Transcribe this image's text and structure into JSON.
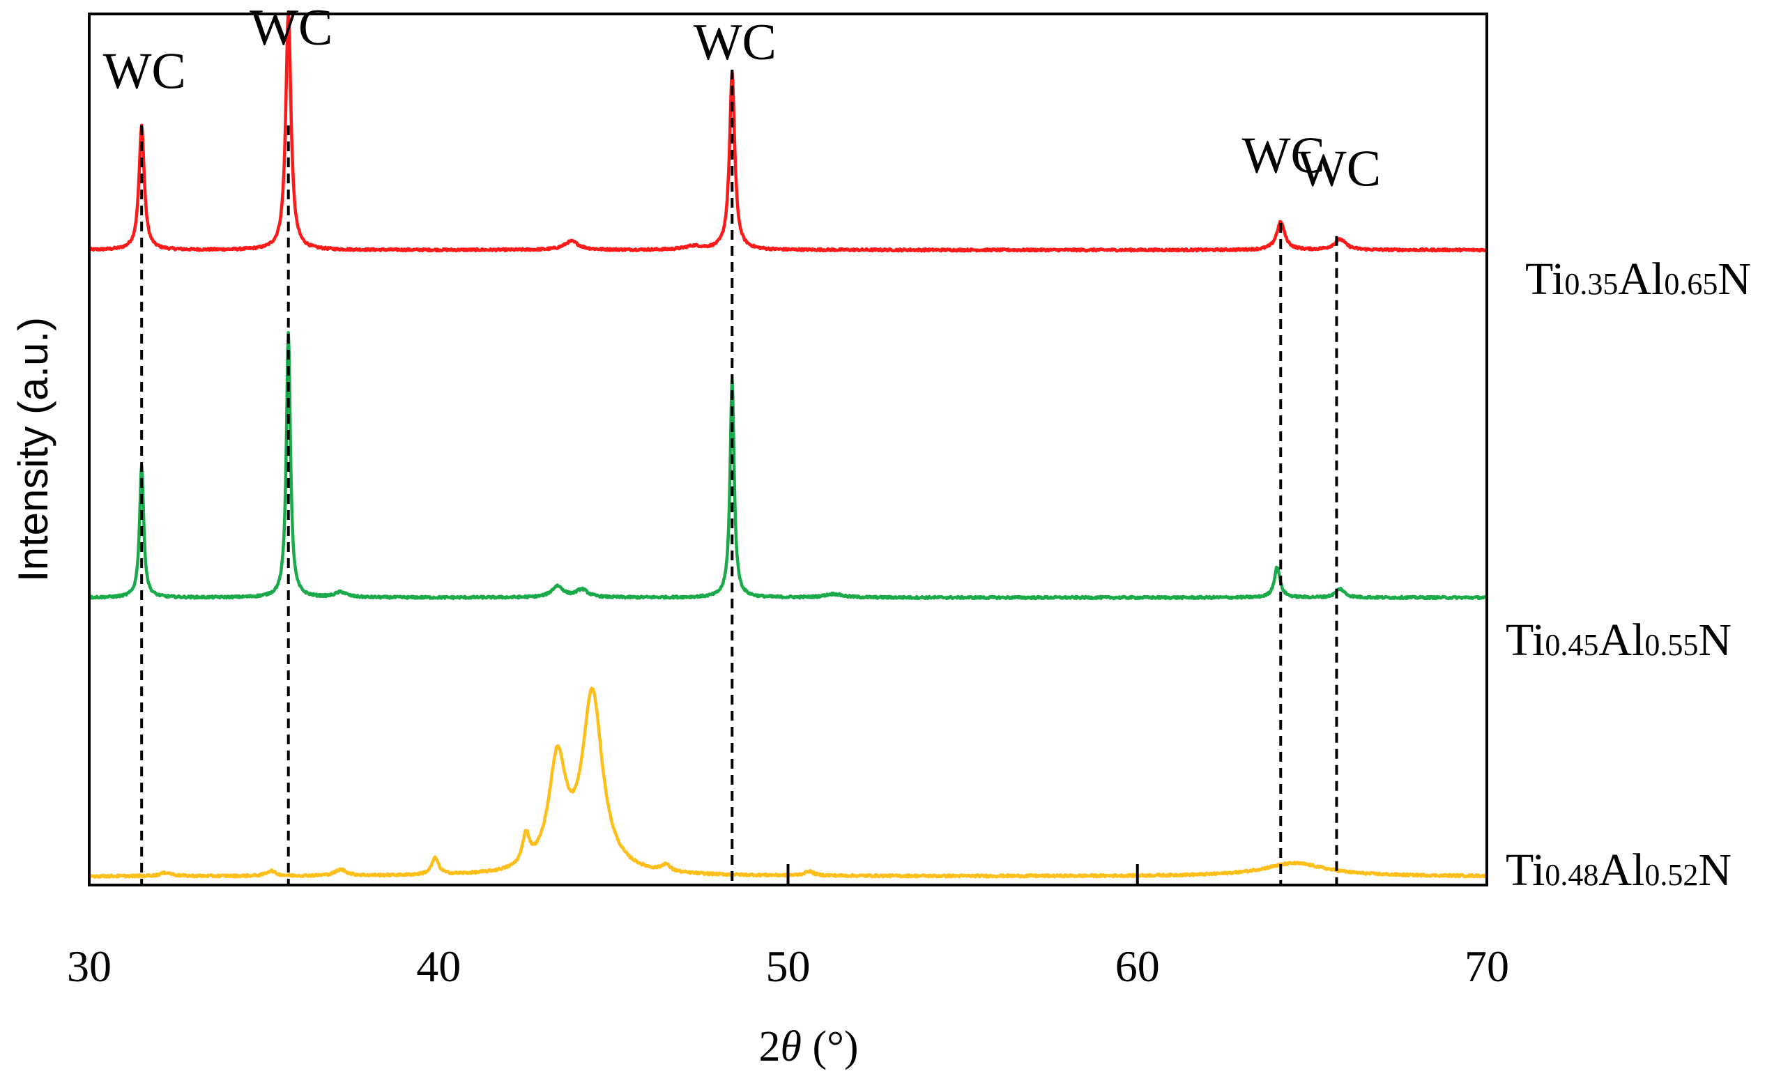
{
  "chart_data": {
    "type": "line",
    "title": "",
    "xlabel_prefix": "2",
    "xlabel_symbol": "θ",
    "xlabel_suffix": " (°)",
    "ylabel": "Intensity (a.u.)",
    "xlim": [
      30,
      70
    ],
    "ylim": [
      0,
      100
    ],
    "x_ticks": [
      30,
      40,
      50,
      60,
      70
    ],
    "x_tick_labels": [
      "30",
      "40",
      "50",
      "60",
      "70"
    ],
    "series": [
      {
        "name": "Ti0.35Al0.65N",
        "label_parts": [
          {
            "text": "Ti",
            "size": "big"
          },
          {
            "text": "0.35",
            "size": "small"
          },
          {
            "text": "Al",
            "size": "big"
          },
          {
            "text": "0.65",
            "size": "small"
          },
          {
            "text": "N",
            "size": "big"
          }
        ],
        "color": "#ff1a1a",
        "baseline": 72.9,
        "peaks": [
          {
            "x": 31.5,
            "h": 14.3,
            "w": 0.09
          },
          {
            "x": 35.7,
            "h": 27.4,
            "w": 0.09
          },
          {
            "x": 43.8,
            "h": 1.0,
            "w": 0.25
          },
          {
            "x": 47.3,
            "h": 0.4,
            "w": 0.3
          },
          {
            "x": 48.4,
            "h": 20.3,
            "w": 0.09
          },
          {
            "x": 64.1,
            "h": 3.2,
            "w": 0.14
          },
          {
            "x": 65.8,
            "h": 1.2,
            "w": 0.2
          }
        ]
      },
      {
        "name": "Ti0.45Al0.55N",
        "label_parts": [
          {
            "text": "Ti",
            "size": "big"
          },
          {
            "text": "0.45",
            "size": "small"
          },
          {
            "text": "Al",
            "size": "big"
          },
          {
            "text": "0.55",
            "size": "small"
          },
          {
            "text": "N",
            "size": "big"
          }
        ],
        "color": "#1aaa4a",
        "baseline": 33.0,
        "peaks": [
          {
            "x": 31.5,
            "h": 15.2,
            "w": 0.07
          },
          {
            "x": 35.7,
            "h": 30.5,
            "w": 0.07
          },
          {
            "x": 37.2,
            "h": 0.6,
            "w": 0.2
          },
          {
            "x": 43.4,
            "h": 1.3,
            "w": 0.2
          },
          {
            "x": 44.1,
            "h": 0.9,
            "w": 0.2
          },
          {
            "x": 48.4,
            "h": 25.0,
            "w": 0.07
          },
          {
            "x": 51.3,
            "h": 0.4,
            "w": 0.3
          },
          {
            "x": 64.0,
            "h": 3.5,
            "w": 0.1
          },
          {
            "x": 65.8,
            "h": 1.0,
            "w": 0.15
          }
        ]
      },
      {
        "name": "Ti0.48Al0.52N",
        "label_parts": [
          {
            "text": "Ti",
            "size": "big"
          },
          {
            "text": "0.48",
            "size": "small"
          },
          {
            "text": "Al",
            "size": "big"
          },
          {
            "text": "0.52",
            "size": "small"
          },
          {
            "text": "N",
            "size": "big"
          }
        ],
        "color": "#ffbf1a",
        "baseline": 1.0,
        "peaks": [
          {
            "x": 32.2,
            "h": 0.4,
            "w": 0.2
          },
          {
            "x": 35.2,
            "h": 0.6,
            "w": 0.15
          },
          {
            "x": 37.2,
            "h": 0.7,
            "w": 0.2
          },
          {
            "x": 39.9,
            "h": 1.9,
            "w": 0.12
          },
          {
            "x": 42.5,
            "h": 3.4,
            "w": 0.12
          },
          {
            "x": 43.4,
            "h": 12.6,
            "w": 0.3
          },
          {
            "x": 44.4,
            "h": 20.5,
            "w": 0.35
          },
          {
            "x": 46.5,
            "h": 0.8,
            "w": 0.15
          },
          {
            "x": 50.6,
            "h": 0.5,
            "w": 0.15
          },
          {
            "x": 64.5,
            "h": 1.5,
            "w": 1.1
          }
        ]
      }
    ],
    "reference_lines": [
      {
        "x": 31.5,
        "label": "WC",
        "y_top": 87.2,
        "label_y": 91.5
      },
      {
        "x": 35.7,
        "label": "WC",
        "y_top": 87.2,
        "label_y": 96.5
      },
      {
        "x": 48.4,
        "label": "WC",
        "y_top": 93.6,
        "label_y": 94.8
      },
      {
        "x": 64.1,
        "label": "WC",
        "y_top": 76.0,
        "label_y": 81.8
      },
      {
        "x": 65.7,
        "label": "WC",
        "y_top": 74.5,
        "label_y": 80.3
      }
    ],
    "inner_ticks_x": [
      50,
      60
    ]
  }
}
